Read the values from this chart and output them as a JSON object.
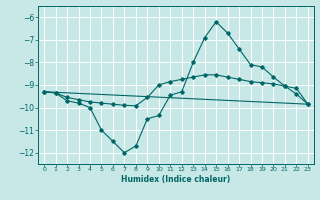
{
  "xlabel": "Humidex (Indice chaleur)",
  "background_color": "#c8e8e8",
  "grid_color": "#ffffff",
  "line_color": "#006666",
  "xlim": [
    -0.5,
    23.5
  ],
  "ylim": [
    -12.5,
    -5.5
  ],
  "yticks": [
    -12,
    -11,
    -10,
    -9,
    -8,
    -7,
    -6
  ],
  "xticks": [
    0,
    1,
    2,
    3,
    4,
    5,
    6,
    7,
    8,
    9,
    10,
    11,
    12,
    13,
    14,
    15,
    16,
    17,
    18,
    19,
    20,
    21,
    22,
    23
  ],
  "line1_x": [
    0,
    1,
    2,
    3,
    4,
    5,
    6,
    7,
    8,
    9,
    10,
    11,
    12,
    13,
    14,
    15,
    16,
    17,
    18,
    19,
    20,
    21,
    22,
    23
  ],
  "line1_y": [
    -9.3,
    -9.35,
    -9.7,
    -9.8,
    -10.0,
    -11.0,
    -11.5,
    -12.0,
    -11.7,
    -10.5,
    -10.35,
    -9.45,
    -9.3,
    -8.0,
    -6.9,
    -6.2,
    -6.7,
    -7.4,
    -8.1,
    -8.2,
    -8.65,
    -9.05,
    -9.4,
    -9.85
  ],
  "line2_x": [
    0,
    1,
    2,
    3,
    4,
    5,
    6,
    7,
    8,
    9,
    10,
    11,
    12,
    13,
    14,
    15,
    16,
    17,
    18,
    19,
    20,
    21,
    22,
    23
  ],
  "line2_y": [
    -9.3,
    -9.35,
    -9.55,
    -9.65,
    -9.75,
    -9.8,
    -9.85,
    -9.9,
    -9.92,
    -9.55,
    -9.0,
    -8.85,
    -8.75,
    -8.65,
    -8.55,
    -8.55,
    -8.65,
    -8.75,
    -8.85,
    -8.9,
    -8.95,
    -9.05,
    -9.15,
    -9.85
  ],
  "line3_x": [
    0,
    23
  ],
  "line3_y": [
    -9.3,
    -9.85
  ]
}
